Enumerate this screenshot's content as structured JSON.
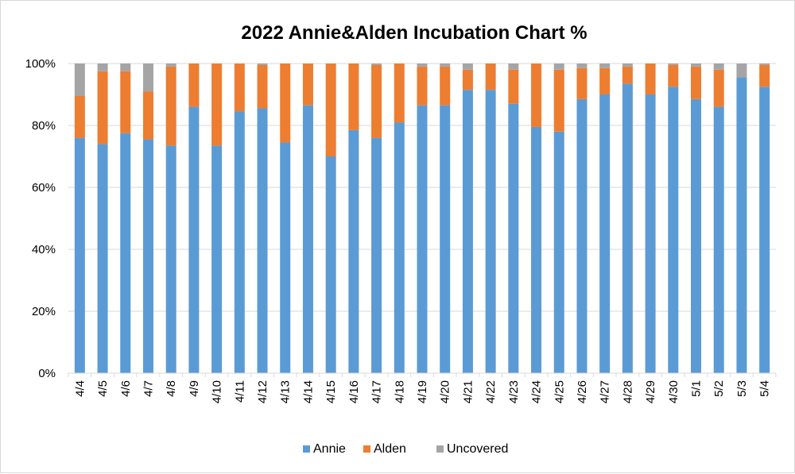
{
  "chart_data": {
    "type": "bar",
    "stacked": true,
    "title": "2022 Annie&Alden Incubation Chart %",
    "xlabel": "",
    "ylabel": "",
    "ylim": [
      0,
      100
    ],
    "yticks": [
      "0%",
      "20%",
      "40%",
      "60%",
      "80%",
      "100%"
    ],
    "categories": [
      "4/4",
      "4/5",
      "4/6",
      "4/7",
      "4/8",
      "4/9",
      "4/10",
      "4/11",
      "4/12",
      "4/13",
      "4/14",
      "4/15",
      "4/16",
      "4/17",
      "4/18",
      "4/19",
      "4/20",
      "4/21",
      "4/22",
      "4/23",
      "4/24",
      "4/25",
      "4/26",
      "4/27",
      "4/28",
      "4/29",
      "4/30",
      "5/1",
      "5/2",
      "5/3",
      "5/4"
    ],
    "series": [
      {
        "name": "Annie",
        "color": "#5b9bd5",
        "values": [
          76,
          74,
          77.5,
          75.5,
          73.5,
          86,
          73.5,
          84.5,
          85.5,
          74.5,
          86.5,
          70,
          78.5,
          76,
          81,
          86.5,
          86.5,
          91.5,
          91.5,
          87,
          79.5,
          78,
          88.5,
          90,
          93.5,
          90,
          92.5,
          88.5,
          86,
          95.5,
          92.5
        ]
      },
      {
        "name": "Alden",
        "color": "#ed7d31",
        "values": [
          13.5,
          23.5,
          20,
          15.5,
          25.5,
          14,
          26.5,
          15.5,
          14,
          25.5,
          13.5,
          30,
          21.5,
          23.5,
          19,
          12.5,
          12.5,
          6.5,
          8.5,
          11,
          20.5,
          20,
          10,
          8.5,
          5.5,
          10,
          7,
          10.5,
          12,
          0,
          7
        ]
      },
      {
        "name": "Uncovered",
        "color": "#a5a5a5",
        "values": [
          10.5,
          2.5,
          2.5,
          9,
          1,
          0,
          0,
          0,
          0.5,
          0,
          0,
          0,
          0,
          0.5,
          0,
          1,
          1,
          2,
          0,
          2,
          0,
          2,
          1.5,
          1.5,
          1,
          0,
          0.5,
          1,
          2,
          4.5,
          0.5
        ]
      }
    ],
    "grid": true,
    "legend_position": "bottom"
  }
}
